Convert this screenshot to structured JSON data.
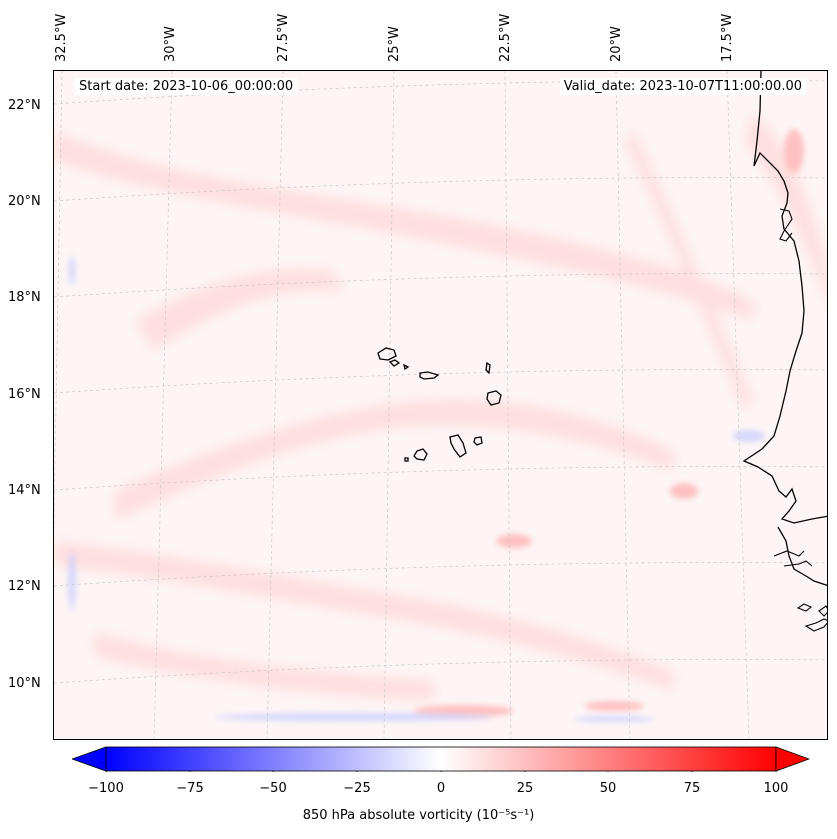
{
  "map": {
    "start_date": "Start date: 2023-10-06_00:00:00",
    "valid_date": "Valid_date: 2023-10-07T11:00:00.00",
    "longitude_labels": [
      "32.5°W",
      "30°W",
      "27.5°W",
      "25°W",
      "22.5°W",
      "20°W",
      "17.5°W"
    ],
    "latitude_labels": [
      "22°N",
      "20°N",
      "18°N",
      "16°N",
      "14°N",
      "12°N",
      "10°N"
    ],
    "region": "Cape Verde Islands and West African coast",
    "field": "850 hPa absolute vorticity",
    "colormap": "bwr",
    "colors": {
      "negative": "#0000ff",
      "zero": "#ffffff",
      "positive": "#ff0000",
      "coastline": "#000000"
    }
  },
  "colorbar": {
    "label": "850 hPa absolute vorticity (10⁻⁵s⁻¹)",
    "ticks": [
      "−100",
      "−75",
      "−50",
      "−25",
      "0",
      "25",
      "50",
      "75",
      "100"
    ],
    "range": [
      -100,
      100
    ],
    "extend": "both"
  }
}
